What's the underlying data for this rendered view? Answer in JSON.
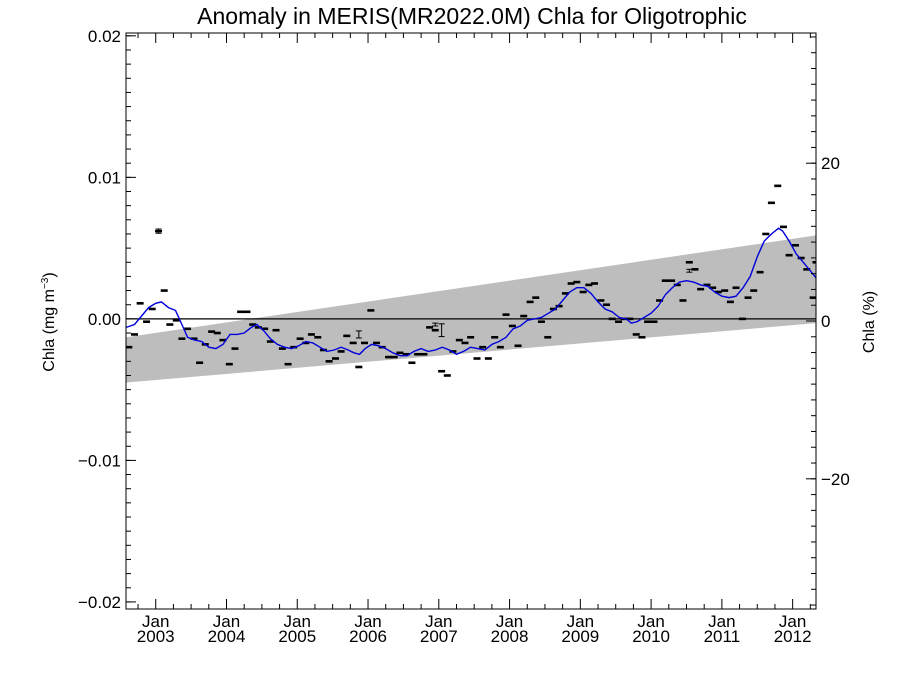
{
  "chart_data": {
    "type": "scatter",
    "title": "Anomaly in MERIS(MR2022.0M) Chla for Oligotrophic",
    "ylabel": "Chla (mg m",
    "ylabel_sup": "−3",
    "ylabel_close": ")",
    "y2label": "Chla (%)",
    "ylim": [
      -0.0205,
      0.0202
    ],
    "y2lim": [
      -36.5,
      36.5
    ],
    "xlim": [
      2002.58,
      2012.33
    ],
    "y_ticks": [
      {
        "value": 0.02,
        "label": "0.02"
      },
      {
        "value": 0.01,
        "label": "0.01"
      },
      {
        "value": 0.0,
        "label": "0.00"
      },
      {
        "value": -0.01,
        "label": "−0.01"
      },
      {
        "value": -0.02,
        "label": "−0.02"
      }
    ],
    "y2_ticks": [
      {
        "value": 20,
        "label": "20"
      },
      {
        "value": 0,
        "label": "0"
      },
      {
        "value": -20,
        "label": "−20"
      }
    ],
    "x_ticks": [
      {
        "value": 2003.0,
        "month": "Jan",
        "year": "2003"
      },
      {
        "value": 2004.0,
        "month": "Jan",
        "year": "2004"
      },
      {
        "value": 2005.0,
        "month": "Jan",
        "year": "2005"
      },
      {
        "value": 2006.0,
        "month": "Jan",
        "year": "2006"
      },
      {
        "value": 2007.0,
        "month": "Jan",
        "year": "2007"
      },
      {
        "value": 2008.0,
        "month": "Jan",
        "year": "2008"
      },
      {
        "value": 2009.0,
        "month": "Jan",
        "year": "2009"
      },
      {
        "value": 2010.0,
        "month": "Jan",
        "year": "2010"
      },
      {
        "value": 2011.0,
        "month": "Jan",
        "year": "2011"
      },
      {
        "value": 2012.0,
        "month": "Jan",
        "year": "2012"
      }
    ],
    "trend_band": {
      "x": [
        2002.58,
        2012.33
      ],
      "lower": [
        -0.0045,
        -0.0003
      ],
      "upper": [
        -0.0013,
        0.0059
      ]
    },
    "zero_line": 0,
    "points": [
      [
        2002.62,
        -0.002
      ],
      [
        2002.7,
        -0.0011
      ],
      [
        2002.78,
        0.0011
      ],
      [
        2002.87,
        -0.0002
      ],
      [
        2002.95,
        0.0007
      ],
      [
        2003.04,
        0.0062
      ],
      [
        2003.12,
        0.002
      ],
      [
        2003.2,
        -0.0004
      ],
      [
        2003.29,
        -0.0001
      ],
      [
        2003.37,
        -0.0014
      ],
      [
        2003.45,
        -0.0007
      ],
      [
        2003.54,
        -0.0014
      ],
      [
        2003.62,
        -0.0031
      ],
      [
        2003.7,
        -0.0018
      ],
      [
        2003.79,
        -0.0009
      ],
      [
        2003.87,
        -0.001
      ],
      [
        2003.95,
        -0.0015
      ],
      [
        2004.04,
        -0.0032
      ],
      [
        2004.12,
        -0.0021
      ],
      [
        2004.2,
        0.0005
      ],
      [
        2004.29,
        0.0005
      ],
      [
        2004.37,
        -0.0004
      ],
      [
        2004.45,
        -0.0006
      ],
      [
        2004.54,
        -0.0007
      ],
      [
        2004.62,
        -0.0016
      ],
      [
        2004.7,
        -0.0008
      ],
      [
        2004.79,
        -0.0021
      ],
      [
        2004.87,
        -0.0032
      ],
      [
        2004.95,
        -0.002
      ],
      [
        2005.04,
        -0.0014
      ],
      [
        2005.12,
        -0.0017
      ],
      [
        2005.2,
        -0.0011
      ],
      [
        2005.29,
        -0.0013
      ],
      [
        2005.37,
        -0.0022
      ],
      [
        2005.45,
        -0.003
      ],
      [
        2005.54,
        -0.0028
      ],
      [
        2005.62,
        -0.0023
      ],
      [
        2005.7,
        -0.0012
      ],
      [
        2005.79,
        -0.0017
      ],
      [
        2005.87,
        -0.0034
      ],
      [
        2005.95,
        -0.0017
      ],
      [
        2006.04,
        0.0006
      ],
      [
        2006.12,
        -0.0017
      ],
      [
        2006.2,
        -0.002
      ],
      [
        2006.29,
        -0.0027
      ],
      [
        2006.37,
        -0.0027
      ],
      [
        2006.45,
        -0.0024
      ],
      [
        2006.54,
        -0.0025
      ],
      [
        2006.62,
        -0.0031
      ],
      [
        2006.7,
        -0.0025
      ],
      [
        2006.79,
        -0.0025
      ],
      [
        2006.87,
        -0.0006
      ],
      [
        2006.95,
        -0.0008
      ],
      [
        2007.04,
        -0.0037
      ],
      [
        2007.12,
        -0.004
      ],
      [
        2007.2,
        -0.0023
      ],
      [
        2007.29,
        -0.0015
      ],
      [
        2007.37,
        -0.0017
      ],
      [
        2007.45,
        -0.0013
      ],
      [
        2007.54,
        -0.0028
      ],
      [
        2007.62,
        -0.002
      ],
      [
        2007.7,
        -0.0028
      ],
      [
        2007.79,
        -0.0013
      ],
      [
        2007.87,
        -0.002
      ],
      [
        2007.95,
        0.0003
      ],
      [
        2008.04,
        -0.0005
      ],
      [
        2008.12,
        -0.0019
      ],
      [
        2008.2,
        0.0002
      ],
      [
        2008.29,
        0.0012
      ],
      [
        2008.37,
        0.0015
      ],
      [
        2008.45,
        -0.0002
      ],
      [
        2008.54,
        -0.0013
      ],
      [
        2008.62,
        0.0007
      ],
      [
        2008.7,
        0.0009
      ],
      [
        2008.79,
        0.0018
      ],
      [
        2008.87,
        0.0025
      ],
      [
        2008.95,
        0.0026
      ],
      [
        2009.04,
        0.0019
      ],
      [
        2009.12,
        0.0024
      ],
      [
        2009.2,
        0.0025
      ],
      [
        2009.29,
        0.0013
      ],
      [
        2009.37,
        0.001
      ],
      [
        2009.45,
        0.0
      ],
      [
        2009.54,
        -0.0002
      ],
      [
        2009.62,
        0.0
      ],
      [
        2009.7,
        0.0
      ],
      [
        2009.79,
        -0.0011
      ],
      [
        2009.87,
        -0.0013
      ],
      [
        2009.95,
        -0.0002
      ],
      [
        2010.04,
        -0.0002
      ],
      [
        2010.12,
        0.0013
      ],
      [
        2010.2,
        0.0027
      ],
      [
        2010.29,
        0.0027
      ],
      [
        2010.37,
        0.0024
      ],
      [
        2010.45,
        0.0013
      ],
      [
        2010.54,
        0.004
      ],
      [
        2010.62,
        0.0035
      ],
      [
        2010.7,
        0.0021
      ],
      [
        2010.79,
        0.0024
      ],
      [
        2010.87,
        0.0022
      ],
      [
        2010.95,
        0.0019
      ],
      [
        2011.04,
        0.002
      ],
      [
        2011.12,
        0.0012
      ],
      [
        2011.2,
        0.0022
      ],
      [
        2011.29,
        0.0
      ],
      [
        2011.37,
        0.0015
      ],
      [
        2011.45,
        0.002
      ],
      [
        2011.54,
        0.0033
      ],
      [
        2011.62,
        0.006
      ],
      [
        2011.7,
        0.0082
      ],
      [
        2011.79,
        0.0094
      ],
      [
        2011.87,
        0.0065
      ],
      [
        2011.95,
        0.0045
      ],
      [
        2012.04,
        0.0052
      ],
      [
        2012.12,
        0.0043
      ],
      [
        2012.2,
        0.0035
      ],
      [
        2012.29,
        0.0015
      ],
      [
        2012.33,
        0.004
      ]
    ],
    "error_bars": [
      {
        "x": 2003.04,
        "y": 0.0062,
        "err": 0.00015
      },
      {
        "x": 2005.87,
        "y": -0.0011,
        "err": 0.00025
      },
      {
        "x": 2007.04,
        "y": -0.0008,
        "err": 0.00045
      },
      {
        "x": 2006.95,
        "y": -0.0004,
        "err": 0.0001
      },
      {
        "x": 2010.54,
        "y": 0.0034,
        "err": 0.0001
      }
    ],
    "smooth_line": [
      [
        2002.58,
        -0.0006
      ],
      [
        2002.7,
        -0.0004
      ],
      [
        2002.8,
        0.0002
      ],
      [
        2002.9,
        0.0008
      ],
      [
        2003.0,
        0.0011
      ],
      [
        2003.08,
        0.0012
      ],
      [
        2003.18,
        0.0008
      ],
      [
        2003.28,
        0.0006
      ],
      [
        2003.37,
        -0.0004
      ],
      [
        2003.45,
        -0.0013
      ],
      [
        2003.55,
        -0.0015
      ],
      [
        2003.65,
        -0.0016
      ],
      [
        2003.75,
        -0.002
      ],
      [
        2003.85,
        -0.0021
      ],
      [
        2003.95,
        -0.0018
      ],
      [
        2004.05,
        -0.0011
      ],
      [
        2004.15,
        -0.0011
      ],
      [
        2004.25,
        -0.001
      ],
      [
        2004.35,
        -0.0006
      ],
      [
        2004.43,
        -0.0004
      ],
      [
        2004.52,
        -0.0008
      ],
      [
        2004.62,
        -0.0014
      ],
      [
        2004.72,
        -0.0018
      ],
      [
        2004.82,
        -0.002
      ],
      [
        2004.92,
        -0.0021
      ],
      [
        2005.02,
        -0.0019
      ],
      [
        2005.12,
        -0.0016
      ],
      [
        2005.22,
        -0.0017
      ],
      [
        2005.32,
        -0.002
      ],
      [
        2005.42,
        -0.0023
      ],
      [
        2005.52,
        -0.0022
      ],
      [
        2005.62,
        -0.002
      ],
      [
        2005.72,
        -0.0022
      ],
      [
        2005.8,
        -0.0024
      ],
      [
        2005.88,
        -0.0025
      ],
      [
        2005.96,
        -0.0021
      ],
      [
        2006.05,
        -0.0018
      ],
      [
        2006.15,
        -0.0019
      ],
      [
        2006.25,
        -0.0021
      ],
      [
        2006.35,
        -0.0024
      ],
      [
        2006.45,
        -0.0026
      ],
      [
        2006.55,
        -0.0026
      ],
      [
        2006.65,
        -0.0023
      ],
      [
        2006.75,
        -0.0021
      ],
      [
        2006.85,
        -0.0023
      ],
      [
        2006.95,
        -0.0022
      ],
      [
        2007.05,
        -0.002
      ],
      [
        2007.15,
        -0.0022
      ],
      [
        2007.25,
        -0.0025
      ],
      [
        2007.35,
        -0.0023
      ],
      [
        2007.45,
        -0.002
      ],
      [
        2007.55,
        -0.0021
      ],
      [
        2007.65,
        -0.0022
      ],
      [
        2007.75,
        -0.0018
      ],
      [
        2007.85,
        -0.0016
      ],
      [
        2007.95,
        -0.0013
      ],
      [
        2008.05,
        -0.0007
      ],
      [
        2008.15,
        -0.0005
      ],
      [
        2008.25,
        -0.0001
      ],
      [
        2008.35,
        0.0
      ],
      [
        2008.45,
        0.0001
      ],
      [
        2008.55,
        0.0004
      ],
      [
        2008.65,
        0.0007
      ],
      [
        2008.75,
        0.0013
      ],
      [
        2008.85,
        0.0019
      ],
      [
        2008.95,
        0.0022
      ],
      [
        2009.05,
        0.0022
      ],
      [
        2009.15,
        0.0018
      ],
      [
        2009.25,
        0.0012
      ],
      [
        2009.35,
        0.0007
      ],
      [
        2009.45,
        0.0005
      ],
      [
        2009.55,
        0.0001
      ],
      [
        2009.65,
        0.0
      ],
      [
        2009.72,
        -0.0003
      ],
      [
        2009.8,
        -0.0002
      ],
      [
        2009.9,
        0.0001
      ],
      [
        2010.0,
        0.0004
      ],
      [
        2010.1,
        0.0009
      ],
      [
        2010.2,
        0.0017
      ],
      [
        2010.3,
        0.0022
      ],
      [
        2010.4,
        0.0026
      ],
      [
        2010.5,
        0.0027
      ],
      [
        2010.6,
        0.0026
      ],
      [
        2010.7,
        0.0024
      ],
      [
        2010.8,
        0.0023
      ],
      [
        2010.9,
        0.0019
      ],
      [
        2011.0,
        0.0016
      ],
      [
        2011.1,
        0.0015
      ],
      [
        2011.2,
        0.0016
      ],
      [
        2011.3,
        0.0022
      ],
      [
        2011.4,
        0.003
      ],
      [
        2011.5,
        0.0044
      ],
      [
        2011.6,
        0.0055
      ],
      [
        2011.7,
        0.006
      ],
      [
        2011.8,
        0.0064
      ],
      [
        2011.86,
        0.0062
      ],
      [
        2011.95,
        0.0055
      ],
      [
        2012.05,
        0.0046
      ],
      [
        2012.15,
        0.004
      ],
      [
        2012.25,
        0.0034
      ],
      [
        2012.33,
        0.0029
      ]
    ],
    "colors": {
      "band": "#bdbdbd",
      "line": "#0000dd",
      "points": "#000000",
      "axes": "#000000"
    }
  }
}
